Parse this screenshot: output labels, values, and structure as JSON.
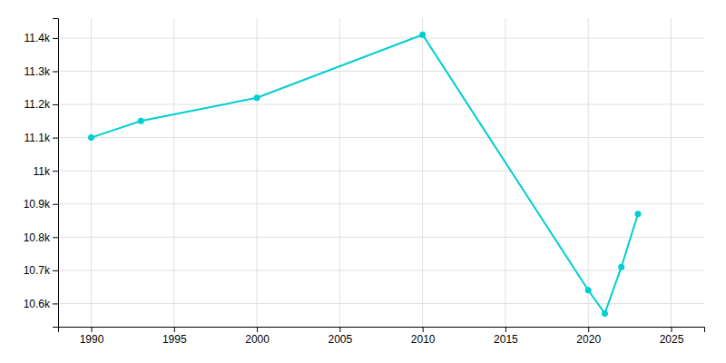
{
  "chart_data": {
    "type": "line",
    "x": [
      1990,
      1993,
      2000,
      2010,
      2020,
      2021,
      2022,
      2023
    ],
    "values": [
      11100,
      11150,
      11220,
      11410,
      10640,
      10570,
      10710,
      10870
    ],
    "color": "#00CED1",
    "marker": "circle",
    "xlim": [
      1988,
      2027
    ],
    "ylim": [
      10530,
      11460
    ],
    "xticks": [
      1990,
      1995,
      2000,
      2005,
      2010,
      2015,
      2020,
      2025
    ],
    "yticks": [
      {
        "value": 10600,
        "label": "10.6k"
      },
      {
        "value": 10700,
        "label": "10.7k"
      },
      {
        "value": 10800,
        "label": "10.8k"
      },
      {
        "value": 10900,
        "label": "10.9k"
      },
      {
        "value": 11000,
        "label": "11k"
      },
      {
        "value": 11100,
        "label": "11.1k"
      },
      {
        "value": 11200,
        "label": "11.2k"
      },
      {
        "value": 11300,
        "label": "11.3k"
      },
      {
        "value": 11400,
        "label": "11.4k"
      }
    ],
    "grid": true
  }
}
